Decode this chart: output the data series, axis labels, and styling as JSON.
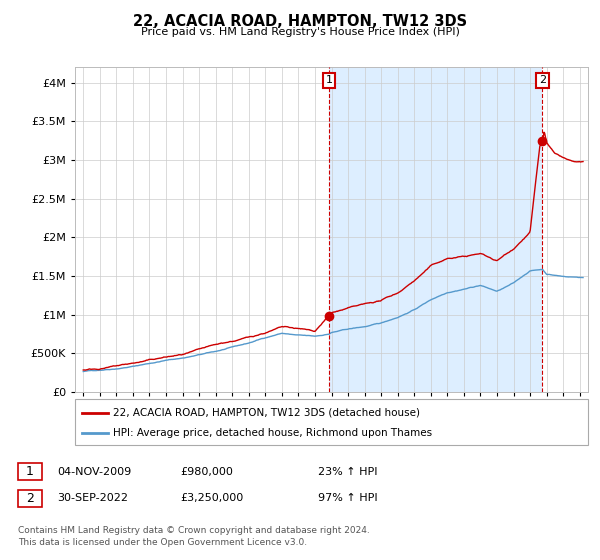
{
  "title": "22, ACACIA ROAD, HAMPTON, TW12 3DS",
  "subtitle": "Price paid vs. HM Land Registry's House Price Index (HPI)",
  "legend_line1": "22, ACACIA ROAD, HAMPTON, TW12 3DS (detached house)",
  "legend_line2": "HPI: Average price, detached house, Richmond upon Thames",
  "annotation1_label": "1",
  "annotation1_date": "04-NOV-2009",
  "annotation1_price": "£980,000",
  "annotation1_hpi": "23% ↑ HPI",
  "annotation1_year": 2009.84,
  "annotation1_value": 980000,
  "annotation2_label": "2",
  "annotation2_date": "30-SEP-2022",
  "annotation2_price": "£3,250,000",
  "annotation2_hpi": "97% ↑ HPI",
  "annotation2_year": 2022.75,
  "annotation2_value": 3250000,
  "footer": "Contains HM Land Registry data © Crown copyright and database right 2024.\nThis data is licensed under the Open Government Licence v3.0.",
  "red_color": "#cc0000",
  "blue_color": "#5599cc",
  "shade_color": "#ddeeff",
  "vline_color": "#cc0000",
  "background_color": "#ffffff",
  "grid_color": "#cccccc",
  "ylim": [
    0,
    4200000
  ],
  "xlim_start": 1994.5,
  "xlim_end": 2025.5,
  "hpi_anchors_x": [
    1995,
    1996,
    1997,
    1998,
    1999,
    2000,
    2001,
    2002,
    2003,
    2004,
    2005,
    2006,
    2007,
    2008,
    2009,
    2009.84,
    2010,
    2011,
    2012,
    2013,
    2014,
    2015,
    2016,
    2017,
    2018,
    2019,
    2020,
    2021,
    2022,
    2022.75,
    2023,
    2024,
    2025
  ],
  "hpi_anchors_y": [
    265000,
    285000,
    310000,
    340000,
    380000,
    420000,
    450000,
    490000,
    530000,
    580000,
    630000,
    700000,
    760000,
    730000,
    710000,
    740000,
    760000,
    800000,
    830000,
    870000,
    950000,
    1050000,
    1180000,
    1280000,
    1330000,
    1380000,
    1300000,
    1400000,
    1560000,
    1580000,
    1520000,
    1490000,
    1480000
  ],
  "red_anchors_x": [
    1995,
    1996,
    1997,
    1998,
    1999,
    2000,
    2001,
    2002,
    2003,
    2004,
    2005,
    2006,
    2007,
    2008,
    2009,
    2009.84,
    2010,
    2011,
    2012,
    2013,
    2014,
    2015,
    2016,
    2017,
    2018,
    2019,
    2020,
    2021,
    2022,
    2022.58,
    2022.75,
    2022.85,
    2023,
    2023.5,
    2024,
    2024.5,
    2025
  ],
  "red_anchors_y": [
    285000,
    310000,
    345000,
    380000,
    420000,
    460000,
    490000,
    540000,
    590000,
    640000,
    690000,
    760000,
    830000,
    800000,
    770000,
    980000,
    1010000,
    1070000,
    1110000,
    1160000,
    1260000,
    1430000,
    1620000,
    1720000,
    1750000,
    1790000,
    1700000,
    1870000,
    2100000,
    3200000,
    3250000,
    3400000,
    3250000,
    3100000,
    3050000,
    3000000,
    2980000
  ]
}
